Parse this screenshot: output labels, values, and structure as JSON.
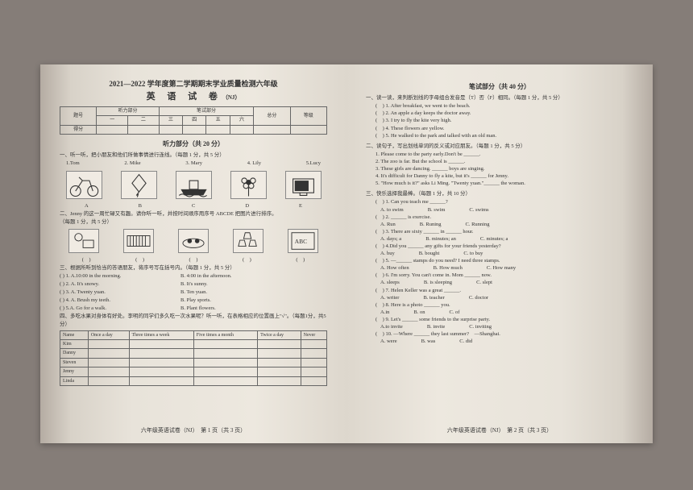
{
  "header": {
    "year": "2021—2022 学年度第二学期期末学业质量检测六年级",
    "subject": "英 语 试 卷",
    "variant": "（NJ）"
  },
  "score_table": {
    "sections": [
      "听力部分",
      "笔试部分"
    ],
    "cols": [
      "题号",
      "一",
      "二",
      "三",
      "四",
      "五",
      "六",
      "总分",
      "等级"
    ],
    "row2": "得分"
  },
  "listening": {
    "title": "听力部分（共 20 分）",
    "p1": {
      "instr": "一、听一听，把小朋友和他们所做事情进行连线。（每题 1 分，共 5 分）",
      "names": [
        "1.Tom",
        "2. Mike",
        "3. Mary",
        "4. Lily",
        "5.Lucy"
      ],
      "labels": [
        "A",
        "B",
        "C",
        "D",
        "E"
      ]
    },
    "p2": {
      "instr": "二、Jenny 的这一周忙碌又有趣。请你听一听，并按时间顺序用序号 ABCDE 把图片进行排序。",
      "note": "（每题 1 分，共 5 分）",
      "brackets": [
        "(　)",
        "(　)",
        "(　)",
        "(　)",
        "(　)"
      ]
    },
    "p3": {
      "instr": "三、根据所听到恰当的答语朋友，将序号写在括号内。（每题 1 分，共 5 分）",
      "items": [
        {
          "q": "( ) 1. A.10:00 in the morning.",
          "b": "B. 4:00 in the afternoon."
        },
        {
          "q": "( ) 2. A. It's snowy.",
          "b": "B. It's sunny."
        },
        {
          "q": "( ) 3. A. Twenty yuan.",
          "b": "B. Ten yuan."
        },
        {
          "q": "( ) 4. A. Brush my teeth.",
          "b": "B. Play sports."
        },
        {
          "q": "( ) 5.A. Go for a walk.",
          "b": "B. Plant flowers."
        }
      ]
    },
    "p4": {
      "instr": "四、多吃水果对身体有好处。李明的同学们多久吃一次水果呢？听一听，在表格相应的位置画上\"√\"。（每题1分，共5分）",
      "headers": [
        "Name",
        "Once a day",
        "Three times a week",
        "Five times a month",
        "Twice a day",
        "Never"
      ],
      "names": [
        "Kim",
        "Danny",
        "Steven",
        "Jenny",
        "Linda"
      ]
    }
  },
  "written": {
    "title": "笔试部分（共 40 分）",
    "sec1": {
      "instr": "一、读一读，来判断划线的字母组合发音是（T）否（F）相同。（每题 1 分，共 5 分）",
      "items": [
        "(　) 1. After breakfast, we went to the beach.",
        "(　) 2. An apple a day keeps the doctor away.",
        "(　) 3. I try to fly the kite very high.",
        "(　) 4. These flowers are yellow.",
        "(　) 5. He walked to the park and talked with an old man."
      ]
    },
    "sec2": {
      "instr": "二、读句子，写出划线单词的反义或对应朋友。（每题 1 分，共 5 分）",
      "items": [
        "1. Please come to the party early.Don't be ______.",
        "2. The zoo is far. But the school is ______.",
        "3. These girls are dancing. ______ boys are singing.",
        "4. It's difficult for Danny to fly a kite, but it's ______ for Jenny.",
        "5. \"How much is it?\" asks Li Ming. \"Twenty yuan.\"______ the woman."
      ]
    },
    "sec3": {
      "instr": "三、快乐选择我最棒。（每题 1 分，共 10 分）",
      "items": [
        {
          "n": "(　) 1. Can you teach me ______?",
          "a": "A. to swim",
          "b": "B. swim",
          "c": "C. swims"
        },
        {
          "n": "(　) 2. ______ is exercise.",
          "a": "A. Run",
          "b": "B. Runing",
          "c": "C. Running"
        },
        {
          "n": "(　) 3. There are sixty ______ in ______ hour.",
          "a": "A. days; a",
          "b": "B. minutes; an",
          "c": "C. minutes; a"
        },
        {
          "n": "(　) 4.Did you ______ any gifts for your friends yesterday?",
          "a": "A. buy",
          "b": "B. bought",
          "c": "C. to buy"
        },
        {
          "n": "(　) 5. —______ stamps do you need? I need three stamps.",
          "a": "A. How often",
          "b": "B. How much",
          "c": "C. How many"
        },
        {
          "n": "(　) 6. I'm sorry. You can't come in. Mom ______ now.",
          "a": "A. sleeps",
          "b": "B. is sleeping",
          "c": "C. slept"
        },
        {
          "n": "(　) 7. Helen Keller was a great ______.",
          "a": "A. writer",
          "b": "B. teacher",
          "c": "C. doctor"
        },
        {
          "n": "(　) 8. Here is a photo ______ you.",
          "a": "A.in",
          "b": "B. on",
          "c": "C. of"
        },
        {
          "n": "(　) 9. Let's ______ some friends to the surprise party.",
          "a": "A.to invite",
          "b": "B. invite",
          "c": "C. inviting"
        },
        {
          "n": "(　) 10. —Where ______ they last summer?　—Shanghai.",
          "a": "A. were",
          "b": "B. was",
          "c": "C. did"
        }
      ]
    }
  },
  "footer": {
    "left": "六年级英语试卷（NJ）　第 1 页（共 3 页）",
    "right": "六年级英语试卷（NJ）　第 2 页（共 3 页）"
  },
  "colors": {
    "bg": "#857d78",
    "paper": "#ede8df",
    "text": "#333333",
    "border": "#666666"
  }
}
